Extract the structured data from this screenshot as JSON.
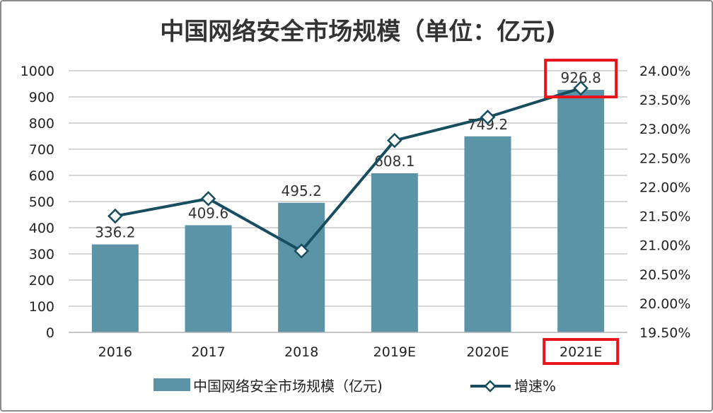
{
  "colors": {
    "bar": "#5b93a7",
    "line": "#174d5e",
    "marker_fill": "#ffffff",
    "grid": "#c8c8c8",
    "highlight_box": "#e8141c"
  },
  "chart_data": {
    "type": "bar",
    "title": "中国网络安全市场规模（单位：亿元)",
    "categories": [
      "2016",
      "2017",
      "2018",
      "2019E",
      "2020E",
      "2021E"
    ],
    "series": [
      {
        "name": "中国网络安全市场规模（亿元)",
        "kind": "bar",
        "axis": "left",
        "values": [
          336.2,
          409.6,
          495.2,
          608.1,
          749.2,
          926.8
        ],
        "labels": [
          "336.2",
          "409.6",
          "495.2",
          "608.1",
          "749.2",
          "926.8"
        ]
      },
      {
        "name": "增速%",
        "kind": "line",
        "axis": "right",
        "marker": "diamond",
        "values": [
          21.5,
          21.8,
          20.9,
          22.8,
          23.2,
          23.7
        ]
      }
    ],
    "y_left": {
      "ylim": [
        0,
        1000
      ],
      "ticks": [
        0,
        100,
        200,
        300,
        400,
        500,
        600,
        700,
        800,
        900,
        1000
      ],
      "tick_labels": [
        "0",
        "100",
        "200",
        "300",
        "400",
        "500",
        "600",
        "700",
        "800",
        "900",
        "1000"
      ]
    },
    "y_right": {
      "ylim": [
        19.5,
        24.0
      ],
      "ticks": [
        19.5,
        20.0,
        20.5,
        21.0,
        21.5,
        22.0,
        22.5,
        23.0,
        23.5,
        24.0
      ],
      "tick_labels": [
        "19.50%",
        "20.00%",
        "20.50%",
        "21.00%",
        "21.50%",
        "22.00%",
        "22.50%",
        "23.00%",
        "23.50%",
        "24.00%"
      ]
    },
    "grid": true,
    "legend_position": "bottom",
    "highlighted": [
      "926.8",
      "2021E"
    ]
  }
}
